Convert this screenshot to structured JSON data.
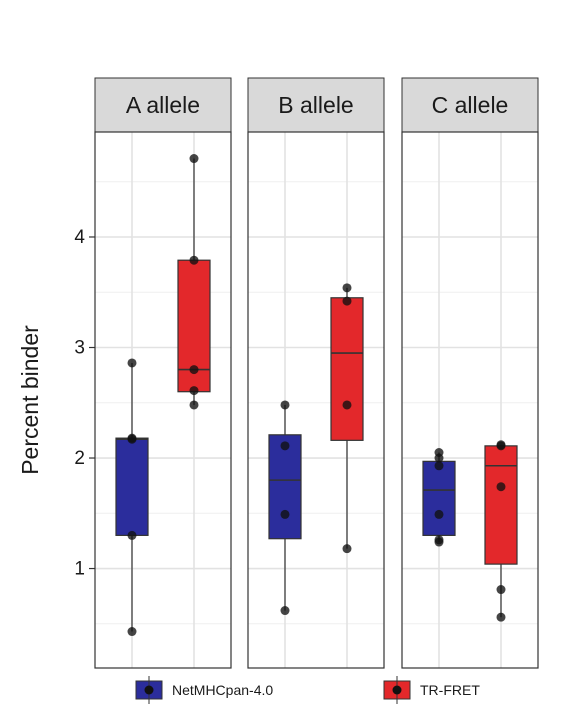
{
  "chart_data": {
    "type": "box",
    "ylabel": "Percent binder",
    "xlabel": "",
    "ylim": [
      0.1,
      4.95
    ],
    "yticks": [
      1,
      2,
      3,
      4
    ],
    "grid": true,
    "legend_position": "bottom",
    "facets": [
      {
        "label": "A allele",
        "groups": [
          {
            "series": "NetMHCpan-4.0",
            "q1": 1.3,
            "median": 2.17,
            "q3": 2.18,
            "whisker_low": 0.43,
            "whisker_high": 2.86,
            "points": [
              0.43,
              1.3,
              2.17,
              2.18,
              2.86
            ]
          },
          {
            "series": "TR-FRET",
            "q1": 2.6,
            "median": 2.8,
            "q3": 3.79,
            "whisker_low": 2.48,
            "whisker_high": 4.71,
            "points": [
              2.48,
              2.61,
              2.8,
              3.79,
              4.71
            ]
          }
        ]
      },
      {
        "label": "B allele",
        "groups": [
          {
            "series": "NetMHCpan-4.0",
            "q1": 1.27,
            "median": 1.8,
            "q3": 2.21,
            "whisker_low": 0.62,
            "whisker_high": 2.48,
            "points": [
              0.62,
              1.49,
              2.11,
              2.48
            ]
          },
          {
            "series": "TR-FRET",
            "q1": 2.16,
            "median": 2.95,
            "q3": 3.45,
            "whisker_low": 1.18,
            "whisker_high": 3.54,
            "points": [
              1.18,
              2.48,
              3.42,
              3.54
            ]
          }
        ]
      },
      {
        "label": "C allele",
        "groups": [
          {
            "series": "NetMHCpan-4.0",
            "q1": 1.3,
            "median": 1.71,
            "q3": 1.97,
            "whisker_low": 1.24,
            "whisker_high": 2.05,
            "points": [
              1.24,
              1.26,
              1.49,
              1.93,
              2.0,
              2.05
            ]
          },
          {
            "series": "TR-FRET",
            "q1": 1.04,
            "median": 1.93,
            "q3": 2.11,
            "whisker_low": 0.56,
            "whisker_high": 2.12,
            "points": [
              0.56,
              0.81,
              1.74,
              2.11,
              2.12
            ]
          }
        ]
      }
    ],
    "series": [
      {
        "name": "NetMHCpan-4.0",
        "color": "#2b2d9c"
      },
      {
        "name": "TR-FRET",
        "color": "#e3282b"
      }
    ]
  }
}
